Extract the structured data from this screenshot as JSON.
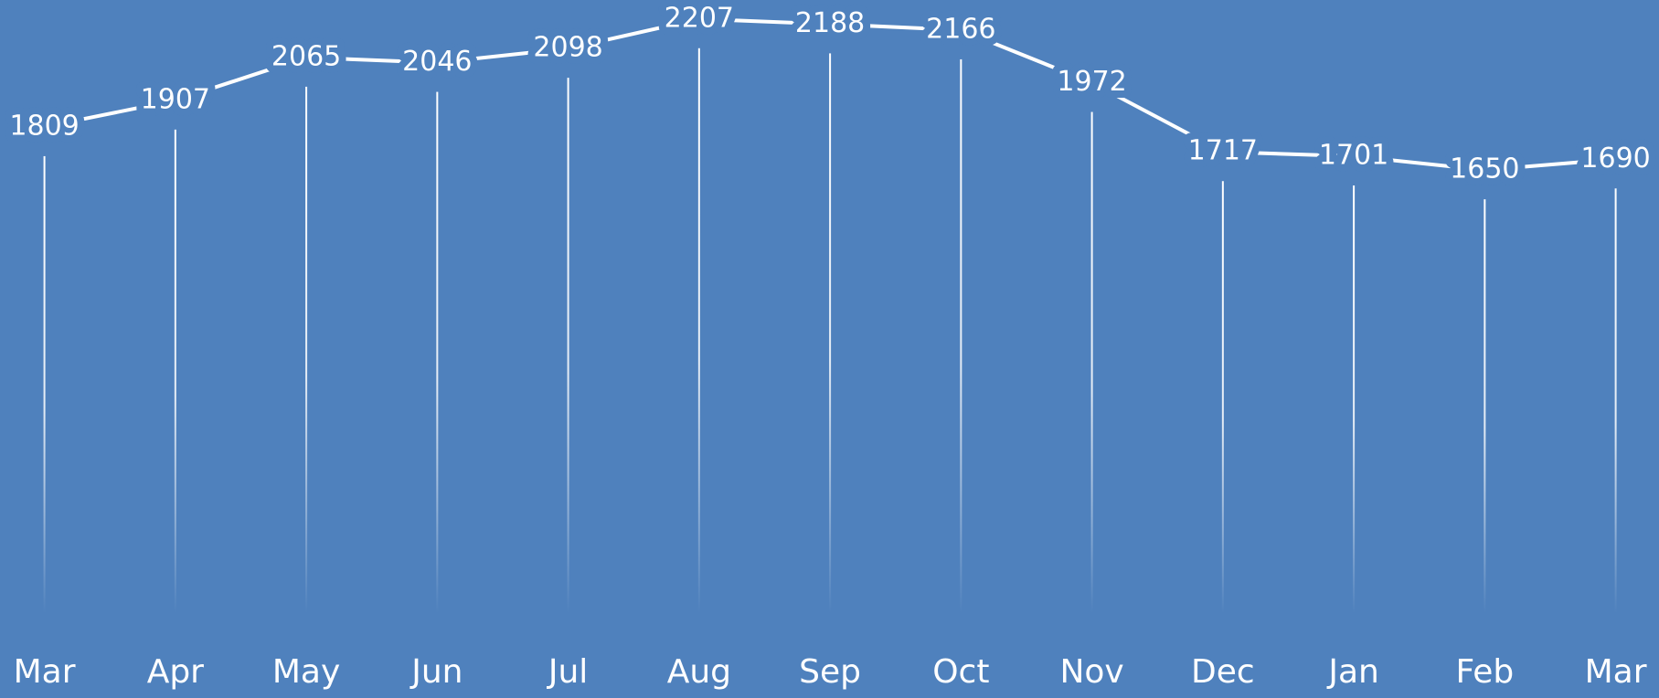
{
  "chart_data": {
    "type": "line",
    "categories": [
      "Mar",
      "Apr",
      "May",
      "Jun",
      "Jul",
      "Aug",
      "Sep",
      "Oct",
      "Nov",
      "Dec",
      "Jan",
      "Feb",
      "Mar"
    ],
    "values": [
      1809,
      1907,
      2065,
      2046,
      2098,
      2207,
      2188,
      2166,
      1972,
      1717,
      1701,
      1650,
      1690
    ],
    "color": "#ffffff",
    "ylim": [
      0,
      2250
    ]
  }
}
